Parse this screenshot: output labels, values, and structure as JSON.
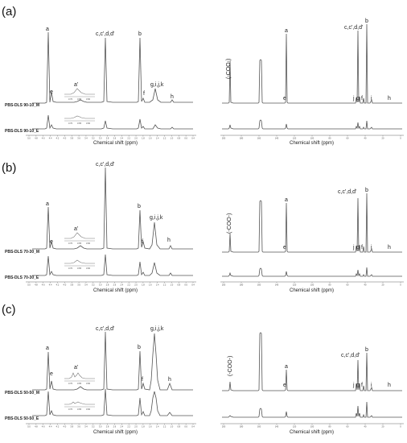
{
  "panels": [
    {
      "label": "(a)",
      "h1": {
        "peak_labels": [
          "a",
          "e",
          "a'",
          "c,c',d,d'",
          "b",
          "f",
          "g,i,j,k",
          "h"
        ],
        "inset_ticks": [
          "3.70",
          "3.65",
          "3.60"
        ],
        "sample_top": "PBS-DLS 90-10_M",
        "sample_bottom": "PBS-DLS 90-10_E",
        "xlabel": "Chemical shift (ppm)"
      },
      "c13": {
        "peak_labels": [
          "(-COO-)",
          "a",
          "c,c',d,d'",
          "b",
          "e",
          "j",
          "g",
          "f",
          "i",
          "h"
        ],
        "xlabel": "Chemical shift (ppm)"
      }
    },
    {
      "label": "(b)",
      "h1": {
        "peak_labels": [
          "c,c',d,d'",
          "a",
          "b",
          "e",
          "a'",
          "g,i,j,k",
          "f",
          "h"
        ],
        "inset_ticks": [
          "3.70",
          "3.65",
          "3.60"
        ],
        "sample_top": "PBS-DLS 70-30_M",
        "sample_bottom": "PBS-DLS 70-30_E",
        "xlabel": "Chemical shift (ppm)"
      },
      "c13": {
        "peak_labels": [
          "(-COO-)",
          "a",
          "c,c',d,d'",
          "b",
          "e",
          "j",
          "g",
          "f",
          "i",
          "h"
        ],
        "xlabel": "Chemical shift (ppm)"
      }
    },
    {
      "label": "(c)",
      "h1": {
        "peak_labels": [
          "c,c',d,d'",
          "g,i,j,k",
          "a",
          "b",
          "e",
          "a'",
          "f",
          "h"
        ],
        "inset_ticks": [
          "3.70",
          "3.65",
          "3.60"
        ],
        "sample_top": "PBS-DLS 50-50_M",
        "sample_bottom": "PBS-DLS 50-50_E",
        "xlabel": "Chemical shift (ppm)"
      },
      "c13": {
        "peak_labels": [
          "(-COO-)",
          "a",
          "c,c',d,d'",
          "b",
          "e",
          "j",
          "g",
          "f",
          "i",
          "h"
        ],
        "xlabel": "Chemical shift (ppm)"
      }
    }
  ],
  "h1_ticks": [
    "5.0",
    "4.8",
    "4.6",
    "4.4",
    "4.2",
    "4.0",
    "3.8",
    "3.6",
    "3.4",
    "3.2",
    "3.0",
    "2.8",
    "2.6",
    "2.4",
    "2.2",
    "2.0",
    "1.8",
    "1.6",
    "1.4",
    "1.2",
    "1.0",
    "0.8",
    "0.6",
    "0.4"
  ],
  "c13_ticks": [
    "200",
    "180",
    "160",
    "140",
    "120",
    "100",
    "80",
    "60",
    "40",
    "20",
    "0"
  ],
  "colors": {
    "spectrum": "#555555",
    "axis": "#666666",
    "inset": "#777777"
  }
}
